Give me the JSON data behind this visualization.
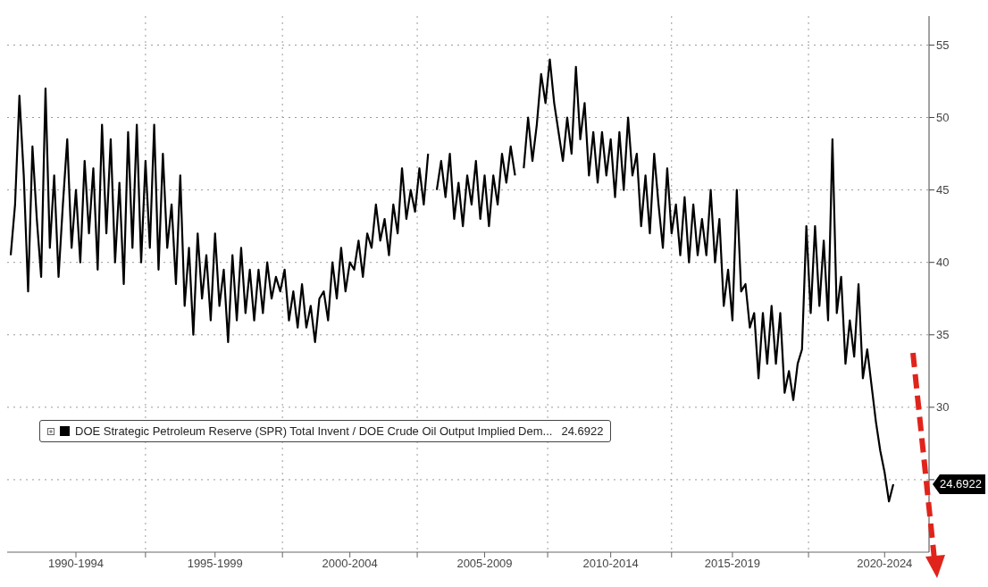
{
  "chart_data": {
    "type": "line",
    "categories": [
      null,
      null,
      null,
      null,
      null,
      null,
      null,
      null,
      null,
      null,
      null,
      null,
      null,
      null,
      null,
      "1990-1994",
      null,
      null,
      null,
      null,
      null,
      null,
      null,
      null,
      null,
      null,
      null,
      null,
      null,
      null,
      null,
      null,
      null,
      null,
      null,
      null,
      null,
      null,
      null,
      null,
      null,
      null,
      null,
      null,
      null,
      null,
      null,
      "1995-1999",
      null,
      null,
      null,
      null,
      null,
      null,
      null,
      null,
      null,
      null,
      null,
      null,
      null,
      null,
      null,
      null,
      null,
      null,
      null,
      null,
      null,
      null,
      null,
      null,
      null,
      null,
      null,
      null,
      null,
      null,
      "2000-2004",
      null,
      null,
      null,
      null,
      null,
      null,
      null,
      null,
      null,
      null,
      null,
      null,
      null,
      null,
      null,
      null,
      null,
      null,
      null,
      null,
      null,
      null,
      null,
      null,
      null,
      null,
      null,
      null,
      null,
      null,
      "2005-2009",
      null,
      null,
      null,
      null,
      null,
      null,
      null,
      null,
      null,
      null,
      null,
      null,
      null,
      null,
      null,
      null,
      null,
      null,
      null,
      null,
      null,
      null,
      null,
      null,
      null,
      null,
      null,
      null,
      "2010-2014",
      null,
      null,
      null,
      null,
      null,
      null,
      null,
      null,
      null,
      null,
      null,
      null,
      null,
      null,
      null,
      null,
      null,
      null,
      null,
      null,
      null,
      null,
      null,
      null,
      null,
      null,
      null,
      "2015-2019",
      null,
      null,
      null,
      null,
      null,
      null,
      null,
      null,
      null,
      null,
      null,
      null,
      null,
      null,
      null,
      null,
      null,
      null,
      null,
      null,
      null,
      null,
      null,
      null,
      null,
      null,
      null,
      null,
      null,
      null,
      null,
      null,
      null,
      null,
      "2020-2024",
      null,
      null
    ],
    "series": [
      {
        "name": "DOE Strategic Petroleum Reserve (SPR) Total Invent / DOE Crude Oil Output Implied Dem...",
        "color": "#000000",
        "values": [
          40.5,
          44,
          51.5,
          46,
          38,
          48,
          43,
          39,
          52,
          41,
          46,
          39,
          44,
          48.5,
          41,
          45,
          40,
          47,
          42,
          46.5,
          39.5,
          49.5,
          42,
          48.5,
          40,
          45.5,
          38.5,
          49,
          41,
          49.5,
          40,
          47,
          41,
          49.5,
          39.5,
          47.5,
          41,
          44,
          38.5,
          46,
          37,
          41,
          35,
          42,
          37.5,
          40.5,
          36,
          42,
          37,
          39.5,
          34.5,
          40.5,
          36,
          41,
          36.5,
          39.5,
          36,
          39.5,
          36.5,
          40,
          37.5,
          39,
          38,
          39.5,
          36,
          38,
          35.5,
          38.5,
          35.5,
          37,
          34.5,
          37.5,
          38,
          36,
          40,
          37.5,
          41,
          38,
          40,
          39.5,
          41.5,
          39,
          42,
          41,
          44,
          41.5,
          43,
          40.5,
          44,
          42,
          46.5,
          43,
          45,
          43.5,
          46.5,
          44,
          47.5,
          null,
          45,
          47,
          44.5,
          47.5,
          43,
          45.5,
          42.5,
          46,
          44,
          47,
          43,
          46,
          42.5,
          46,
          44,
          47.5,
          45.5,
          48,
          46,
          null,
          46.5,
          50,
          47,
          49.5,
          53,
          51,
          54,
          51,
          49,
          47,
          50,
          47.5,
          53.5,
          48.5,
          51,
          46,
          49,
          45.5,
          49,
          46,
          48.5,
          44.5,
          49,
          45,
          50,
          46,
          47.5,
          42.5,
          46,
          42,
          47.5,
          44,
          41,
          46.5,
          42,
          44,
          40.5,
          44.5,
          40,
          44,
          40.5,
          43,
          40.5,
          45,
          40,
          43,
          37,
          39.5,
          36,
          45,
          38,
          38.5,
          35.5,
          36.5,
          32,
          36.5,
          33,
          37,
          33,
          36.5,
          31,
          32.5,
          30.5,
          33,
          34,
          42.5,
          36.5,
          42.5,
          37,
          41.5,
          36,
          48.5,
          36.5,
          39,
          33,
          36,
          33.5,
          38.5,
          32,
          34,
          31.5,
          29,
          27,
          25.5,
          23.5,
          24.6922
        ]
      }
    ],
    "ylim": [
      20,
      57
    ],
    "yticks": [
      {
        "value": 25,
        "label": null
      },
      30,
      35,
      40,
      45,
      50,
      55
    ],
    "grid": true,
    "legend": "bottom left",
    "line_style": "solid",
    "marker": "none",
    "annotations": [
      "24.6922"
    ]
  }
}
